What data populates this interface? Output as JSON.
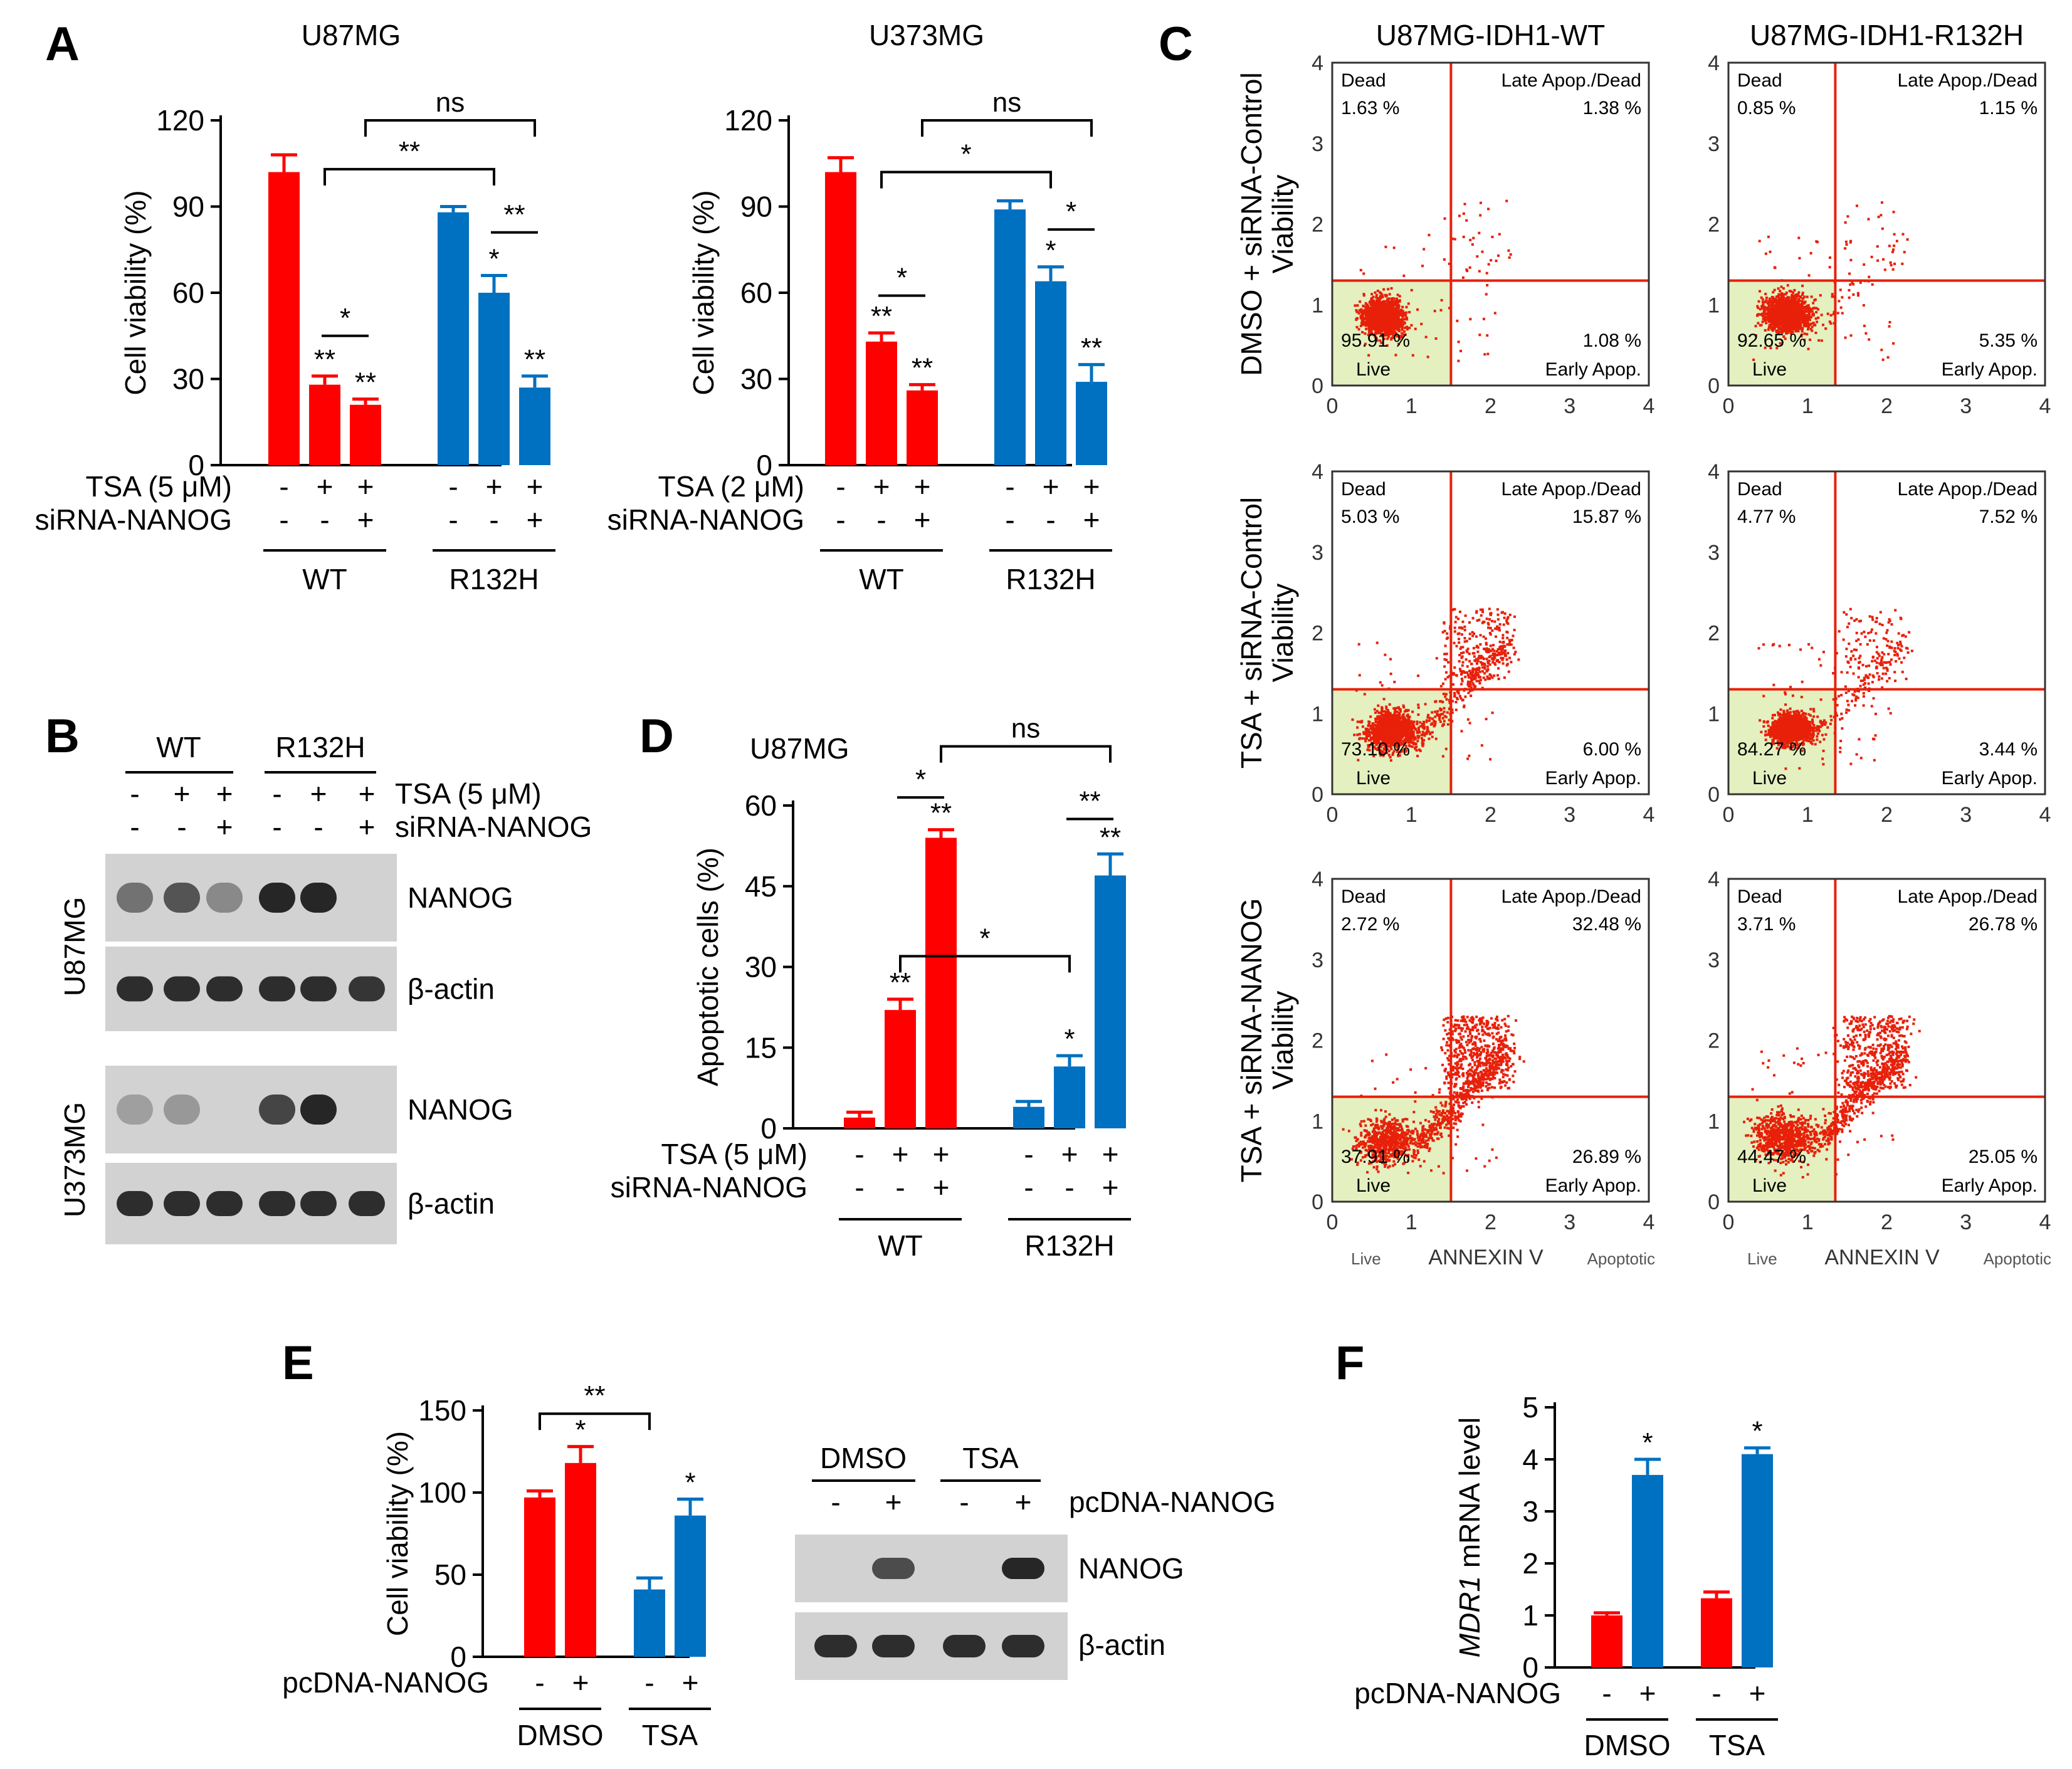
{
  "colors": {
    "red": "#ff0000",
    "blue": "#0070c0",
    "flow_red": "#e8200a",
    "quadrant": "#e4f0c0",
    "gel_bg": "#d2d2d2",
    "band": "#1e1e1e"
  },
  "labels": {
    "A": "A",
    "B": "B",
    "C": "C",
    "D": "D",
    "E": "E",
    "F": "F"
  },
  "chart_data": [
    {
      "id": "A1",
      "type": "bar",
      "title": "U87MG",
      "ylabel": "Cell viability (%)",
      "ylim": [
        0,
        120
      ],
      "yticks": [
        "0",
        "30",
        "60",
        "90",
        "120"
      ],
      "values": [
        102,
        28,
        21,
        88,
        60,
        27
      ],
      "errors": [
        6,
        3,
        2,
        2,
        6,
        4
      ],
      "colors": [
        "red",
        "red",
        "red",
        "blue",
        "blue",
        "blue"
      ],
      "bar_labels": [
        "",
        "**",
        "**",
        "",
        "*",
        "**"
      ],
      "brackets": [
        {
          "from": 1,
          "to": 2,
          "label": "*",
          "y": 45
        },
        {
          "from": 1,
          "to": 4,
          "label": "**",
          "y": 103
        },
        {
          "from": 2,
          "to": 5,
          "label": "ns",
          "y": 120
        },
        {
          "from": 4,
          "to": 5,
          "label": "**",
          "y": 81
        }
      ],
      "rows": [
        {
          "name": "TSA (5 μM)",
          "signs": [
            "-",
            "+",
            "+",
            "-",
            "+",
            "+"
          ]
        },
        {
          "name": "siRNA-NANOG",
          "signs": [
            "-",
            "-",
            "+",
            "-",
            "-",
            "+"
          ]
        }
      ],
      "groups": [
        {
          "name": "WT",
          "from": 0,
          "to": 2
        },
        {
          "name": "R132H",
          "from": 3,
          "to": 5
        }
      ]
    },
    {
      "id": "A2",
      "type": "bar",
      "title": "U373MG",
      "ylabel": "Cell viability (%)",
      "ylim": [
        0,
        120
      ],
      "yticks": [
        "0",
        "30",
        "60",
        "90",
        "120"
      ],
      "values": [
        102,
        43,
        26,
        89,
        64,
        29
      ],
      "errors": [
        5,
        3,
        2,
        3,
        5,
        6
      ],
      "colors": [
        "red",
        "red",
        "red",
        "blue",
        "blue",
        "blue"
      ],
      "bar_labels": [
        "",
        "**",
        "**",
        "",
        "*",
        "**"
      ],
      "brackets": [
        {
          "from": 1,
          "to": 2,
          "label": "*",
          "y": 59
        },
        {
          "from": 1,
          "to": 4,
          "label": "*",
          "y": 102
        },
        {
          "from": 2,
          "to": 5,
          "label": "ns",
          "y": 120
        },
        {
          "from": 4,
          "to": 5,
          "label": "*",
          "y": 82
        }
      ],
      "rows": [
        {
          "name": "TSA (2 μM)",
          "signs": [
            "-",
            "+",
            "+",
            "-",
            "+",
            "+"
          ]
        },
        {
          "name": "siRNA-NANOG",
          "signs": [
            "-",
            "-",
            "+",
            "-",
            "-",
            "+"
          ]
        }
      ],
      "groups": [
        {
          "name": "WT",
          "from": 0,
          "to": 2
        },
        {
          "name": "R132H",
          "from": 3,
          "to": 5
        }
      ]
    },
    {
      "id": "D",
      "type": "bar",
      "title": "U87MG",
      "ylabel": "Apoptotic cells (%)",
      "ylim": [
        0,
        60
      ],
      "yticks": [
        "0",
        "15",
        "30",
        "45",
        "60"
      ],
      "values": [
        2,
        22,
        54,
        4,
        11.5,
        47
      ],
      "errors": [
        1,
        2,
        1.5,
        1,
        2,
        4
      ],
      "colors": [
        "red",
        "red",
        "red",
        "blue",
        "blue",
        "blue"
      ],
      "bar_labels": [
        "",
        "**",
        "**",
        "",
        "*",
        "**"
      ],
      "brackets": [
        {
          "from": 1,
          "to": 2,
          "label": "*",
          "y": 61.5
        },
        {
          "from": 1,
          "to": 4,
          "label": "*",
          "y": 32
        },
        {
          "from": 2,
          "to": 5,
          "label": "ns",
          "y": 71
        },
        {
          "from": 4,
          "to": 5,
          "label": "**",
          "y": 57.5
        }
      ],
      "rows": [
        {
          "name": "TSA (5 μM)",
          "signs": [
            "-",
            "+",
            "+",
            "-",
            "+",
            "+"
          ]
        },
        {
          "name": "siRNA-NANOG",
          "signs": [
            "-",
            "-",
            "+",
            "-",
            "-",
            "+"
          ]
        }
      ],
      "groups": [
        {
          "name": "WT",
          "from": 0,
          "to": 2
        },
        {
          "name": "R132H",
          "from": 3,
          "to": 5
        }
      ]
    },
    {
      "id": "E",
      "type": "bar",
      "ylabel": "Cell viability (%)",
      "ylim": [
        0,
        150
      ],
      "yticks": [
        "0",
        "50",
        "100",
        "150"
      ],
      "values": [
        97,
        118,
        41,
        86
      ],
      "errors": [
        4,
        10,
        7,
        10
      ],
      "colors": [
        "red",
        "red",
        "blue",
        "blue"
      ],
      "bar_labels": [
        "",
        "*",
        "",
        "*"
      ],
      "brackets": [
        {
          "from": 0,
          "to": 2,
          "label": "**",
          "y": 148
        }
      ],
      "rows": [
        {
          "name": "pcDNA-NANOG",
          "signs": [
            "-",
            "+",
            "-",
            "+"
          ]
        }
      ],
      "groups": [
        {
          "name": "DMSO",
          "from": 0,
          "to": 1
        },
        {
          "name": "TSA",
          "from": 2,
          "to": 3
        }
      ]
    },
    {
      "id": "F",
      "type": "bar",
      "ylabel": "MDR1 mRNA level",
      "ylabel_italic": "MDR1",
      "ylabel_rest": " mRNA level",
      "ylim": [
        0,
        5
      ],
      "yticks": [
        "0",
        "1",
        "2",
        "3",
        "4",
        "5"
      ],
      "values": [
        1.0,
        3.7,
        1.33,
        4.1
      ],
      "errors": [
        0.05,
        0.3,
        0.12,
        0.12
      ],
      "colors": [
        "red",
        "blue",
        "red",
        "blue"
      ],
      "bar_labels": [
        "",
        "*",
        "",
        "*"
      ],
      "brackets": [],
      "rows": [
        {
          "name": "pcDNA-NANOG",
          "signs": [
            "-",
            "+",
            "-",
            "+"
          ]
        }
      ],
      "groups": [
        {
          "name": "DMSO",
          "from": 0,
          "to": 1
        },
        {
          "name": "TSA",
          "from": 2,
          "to": 3
        }
      ]
    }
  ],
  "flow": {
    "columns": [
      "U87MG-IDH1-WT",
      "U87MG-IDH1-R132H"
    ],
    "rows": [
      "DMSO + siRNA-Control",
      "TSA + siRNA-Control",
      "TSA + siRNA-NANOG"
    ],
    "ylabel": "Viability",
    "xlabel": "ANNEXIN V",
    "x_left": "Live",
    "x_right": "Apoptotic",
    "ticks": [
      "0",
      "1",
      "2",
      "3",
      "4"
    ],
    "quad_names": {
      "dead": "Dead",
      "late": "Late Apop./Dead",
      "live": "Live",
      "early": "Early Apop."
    },
    "panels": [
      {
        "dead": "1.63 %",
        "late": "1.38 %",
        "live": "95.91 %",
        "early": "1.08 %"
      },
      {
        "dead": "0.85 %",
        "late": "1.15 %",
        "live": "92.65 %",
        "early": "5.35 %"
      },
      {
        "dead": "5.03 %",
        "late": "15.87 %",
        "live": "73.10 %",
        "early": "6.00 %"
      },
      {
        "dead": "4.77 %",
        "late": "7.52 %",
        "live": "84.27 %",
        "early": "3.44 %"
      },
      {
        "dead": "2.72 %",
        "late": "32.48 %",
        "live": "37.91 %",
        "early": "26.89 %"
      },
      {
        "dead": "3.71 %",
        "late": "26.78 %",
        "live": "44.47 %",
        "early": "25.05 %"
      }
    ]
  },
  "blotB": {
    "groups": [
      "WT",
      "R132H"
    ],
    "rows": [
      {
        "name": "TSA (5 μM)",
        "signs": [
          "-",
          "+",
          "+",
          "-",
          "+",
          "+"
        ]
      },
      {
        "name": "siRNA-NANOG",
        "signs": [
          "-",
          "-",
          "+",
          "-",
          "-",
          "+"
        ]
      }
    ],
    "cells": [
      "U87MG",
      "U373MG"
    ],
    "strips": [
      {
        "label": "NANOG",
        "intensities": [
          0.45,
          0.65,
          0.3,
          0.95,
          0.95,
          0.0
        ]
      },
      {
        "label": "β-actin",
        "intensities": [
          0.9,
          0.9,
          0.9,
          0.9,
          0.9,
          0.85
        ]
      },
      {
        "label": "NANOG",
        "intensities": [
          0.15,
          0.2,
          0.0,
          0.75,
          0.95,
          0.0
        ]
      },
      {
        "label": "β-actin",
        "intensities": [
          0.9,
          0.9,
          0.9,
          0.9,
          0.9,
          0.9
        ]
      }
    ]
  },
  "blotE": {
    "groups": [
      "DMSO",
      "TSA"
    ],
    "row": {
      "name": "pcDNA-NANOG",
      "signs": [
        "-",
        "+",
        "-",
        "+"
      ]
    },
    "strips": [
      {
        "label": "NANOG",
        "intensities": [
          0.0,
          0.7,
          0.0,
          0.95
        ]
      },
      {
        "label": "β-actin",
        "intensities": [
          0.9,
          0.9,
          0.9,
          0.9
        ]
      }
    ]
  }
}
